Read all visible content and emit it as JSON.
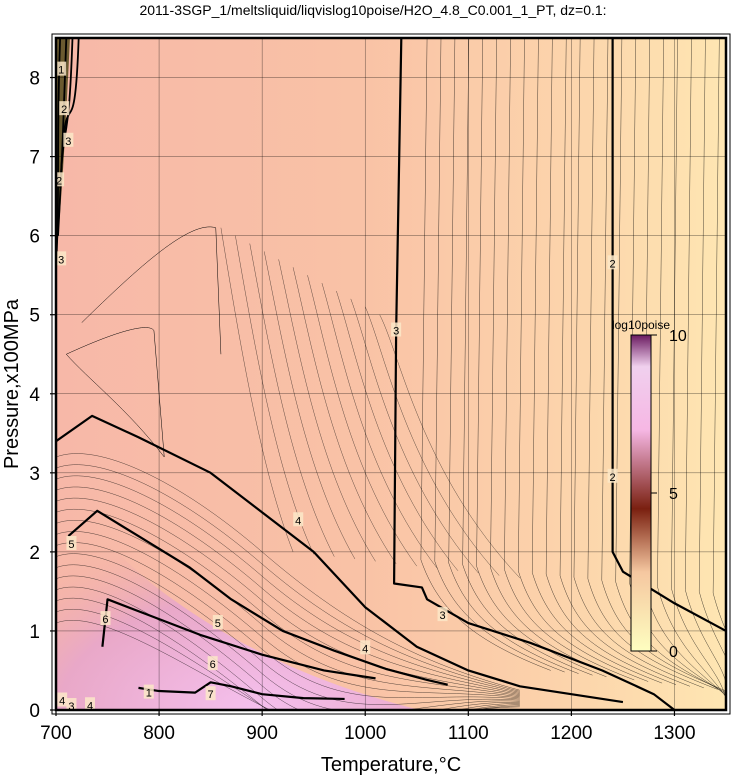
{
  "chart_data": {
    "type": "heatmap",
    "title": "2011-3SGP_1/meltsliquid/liqvislog10poise/H2O_4.8_C0.001_1_PT, dz=0.1:",
    "xlabel": "Temperature,°C",
    "ylabel": "Pressure,x100MPa",
    "xlim": [
      700,
      1350
    ],
    "ylim": [
      0,
      8.5
    ],
    "x_ticks": [
      "700",
      "800",
      "900",
      "1000",
      "1100",
      "1200",
      "1300"
    ],
    "y_ticks": [
      "0",
      "1",
      "2",
      "3",
      "4",
      "5",
      "6",
      "7",
      "8"
    ],
    "grid": true,
    "colorbar": {
      "title": "log10poise",
      "ticks": [
        "0",
        "5",
        "10"
      ],
      "range": [
        0,
        10
      ],
      "colors": [
        "#fefec0",
        "#f5c7a0",
        "#7a2010",
        "#f6b7e4",
        "#ffffff"
      ]
    },
    "contour_levels_labeled": [
      "2",
      "3",
      "4",
      "5",
      "6",
      "7"
    ],
    "contours_major": [
      {
        "label": "3",
        "points": [
          [
            1035,
            8.5
          ],
          [
            1030,
            4.8
          ],
          [
            1028,
            1.6
          ],
          [
            1055,
            1.55
          ],
          [
            1060,
            1.4
          ],
          [
            1100,
            1.1
          ],
          [
            1160,
            0.85
          ],
          [
            1230,
            0.5
          ],
          [
            1280,
            0.2
          ],
          [
            1300,
            0.0
          ]
        ]
      },
      {
        "label": "2",
        "points": [
          [
            1240,
            8.5
          ],
          [
            1240,
            2.0
          ],
          [
            1250,
            1.75
          ],
          [
            1300,
            1.35
          ],
          [
            1350,
            1.0
          ]
        ]
      },
      {
        "label": "4",
        "points": [
          [
            700,
            3.4
          ],
          [
            735,
            3.72
          ],
          [
            780,
            3.45
          ],
          [
            850,
            3.0
          ],
          [
            900,
            2.5
          ],
          [
            950,
            2.0
          ],
          [
            1000,
            1.3
          ],
          [
            1050,
            0.8
          ],
          [
            1100,
            0.5
          ],
          [
            1150,
            0.3
          ],
          [
            1200,
            0.2
          ],
          [
            1250,
            0.1
          ]
        ]
      },
      {
        "label": "5",
        "points": [
          [
            712,
            2.2
          ],
          [
            740,
            2.52
          ],
          [
            780,
            2.2
          ],
          [
            830,
            1.8
          ],
          [
            870,
            1.4
          ],
          [
            920,
            1.0
          ],
          [
            970,
            0.75
          ],
          [
            1020,
            0.52
          ],
          [
            1060,
            0.38
          ],
          [
            1080,
            0.32
          ]
        ]
      },
      {
        "label": "6",
        "points": [
          [
            745,
            0.8
          ],
          [
            750,
            1.4
          ],
          [
            790,
            1.2
          ],
          [
            840,
            0.95
          ],
          [
            900,
            0.7
          ],
          [
            960,
            0.5
          ],
          [
            1010,
            0.4
          ]
        ]
      },
      {
        "label": "7",
        "points": [
          [
            780,
            0.28
          ],
          [
            800,
            0.24
          ],
          [
            835,
            0.22
          ],
          [
            850,
            0.35
          ],
          [
            870,
            0.3
          ],
          [
            900,
            0.2
          ],
          [
            940,
            0.15
          ],
          [
            980,
            0.14
          ]
        ]
      }
    ],
    "inline_labels": [
      {
        "text": "3",
        "x": 1030,
        "y": 4.8
      },
      {
        "text": "2",
        "x": 1240,
        "y": 5.65
      },
      {
        "text": "2",
        "x": 1240,
        "y": 2.95
      },
      {
        "text": "3",
        "x": 1075,
        "y": 1.2
      },
      {
        "text": "4",
        "x": 935,
        "y": 2.4
      },
      {
        "text": "4",
        "x": 1000,
        "y": 0.78
      },
      {
        "text": "5",
        "x": 857,
        "y": 1.1
      },
      {
        "text": "5",
        "x": 715,
        "y": 2.1
      },
      {
        "text": "6",
        "x": 748,
        "y": 1.15
      },
      {
        "text": "6",
        "x": 852,
        "y": 0.58
      },
      {
        "text": "7",
        "x": 850,
        "y": 0.2
      },
      {
        "text": "1",
        "x": 790,
        "y": 0.22
      },
      {
        "text": "4",
        "x": 706,
        "y": 0.12
      },
      {
        "text": "4",
        "x": 733,
        "y": 0.06
      },
      {
        "text": "3",
        "x": 715,
        "y": 0.05
      },
      {
        "text": "1",
        "x": 705,
        "y": 8.1
      },
      {
        "text": "2",
        "x": 708,
        "y": 7.6
      },
      {
        "text": "3",
        "x": 712,
        "y": 7.2
      },
      {
        "text": "2",
        "x": 703,
        "y": 6.7
      },
      {
        "text": "3",
        "x": 705,
        "y": 5.7
      }
    ]
  }
}
